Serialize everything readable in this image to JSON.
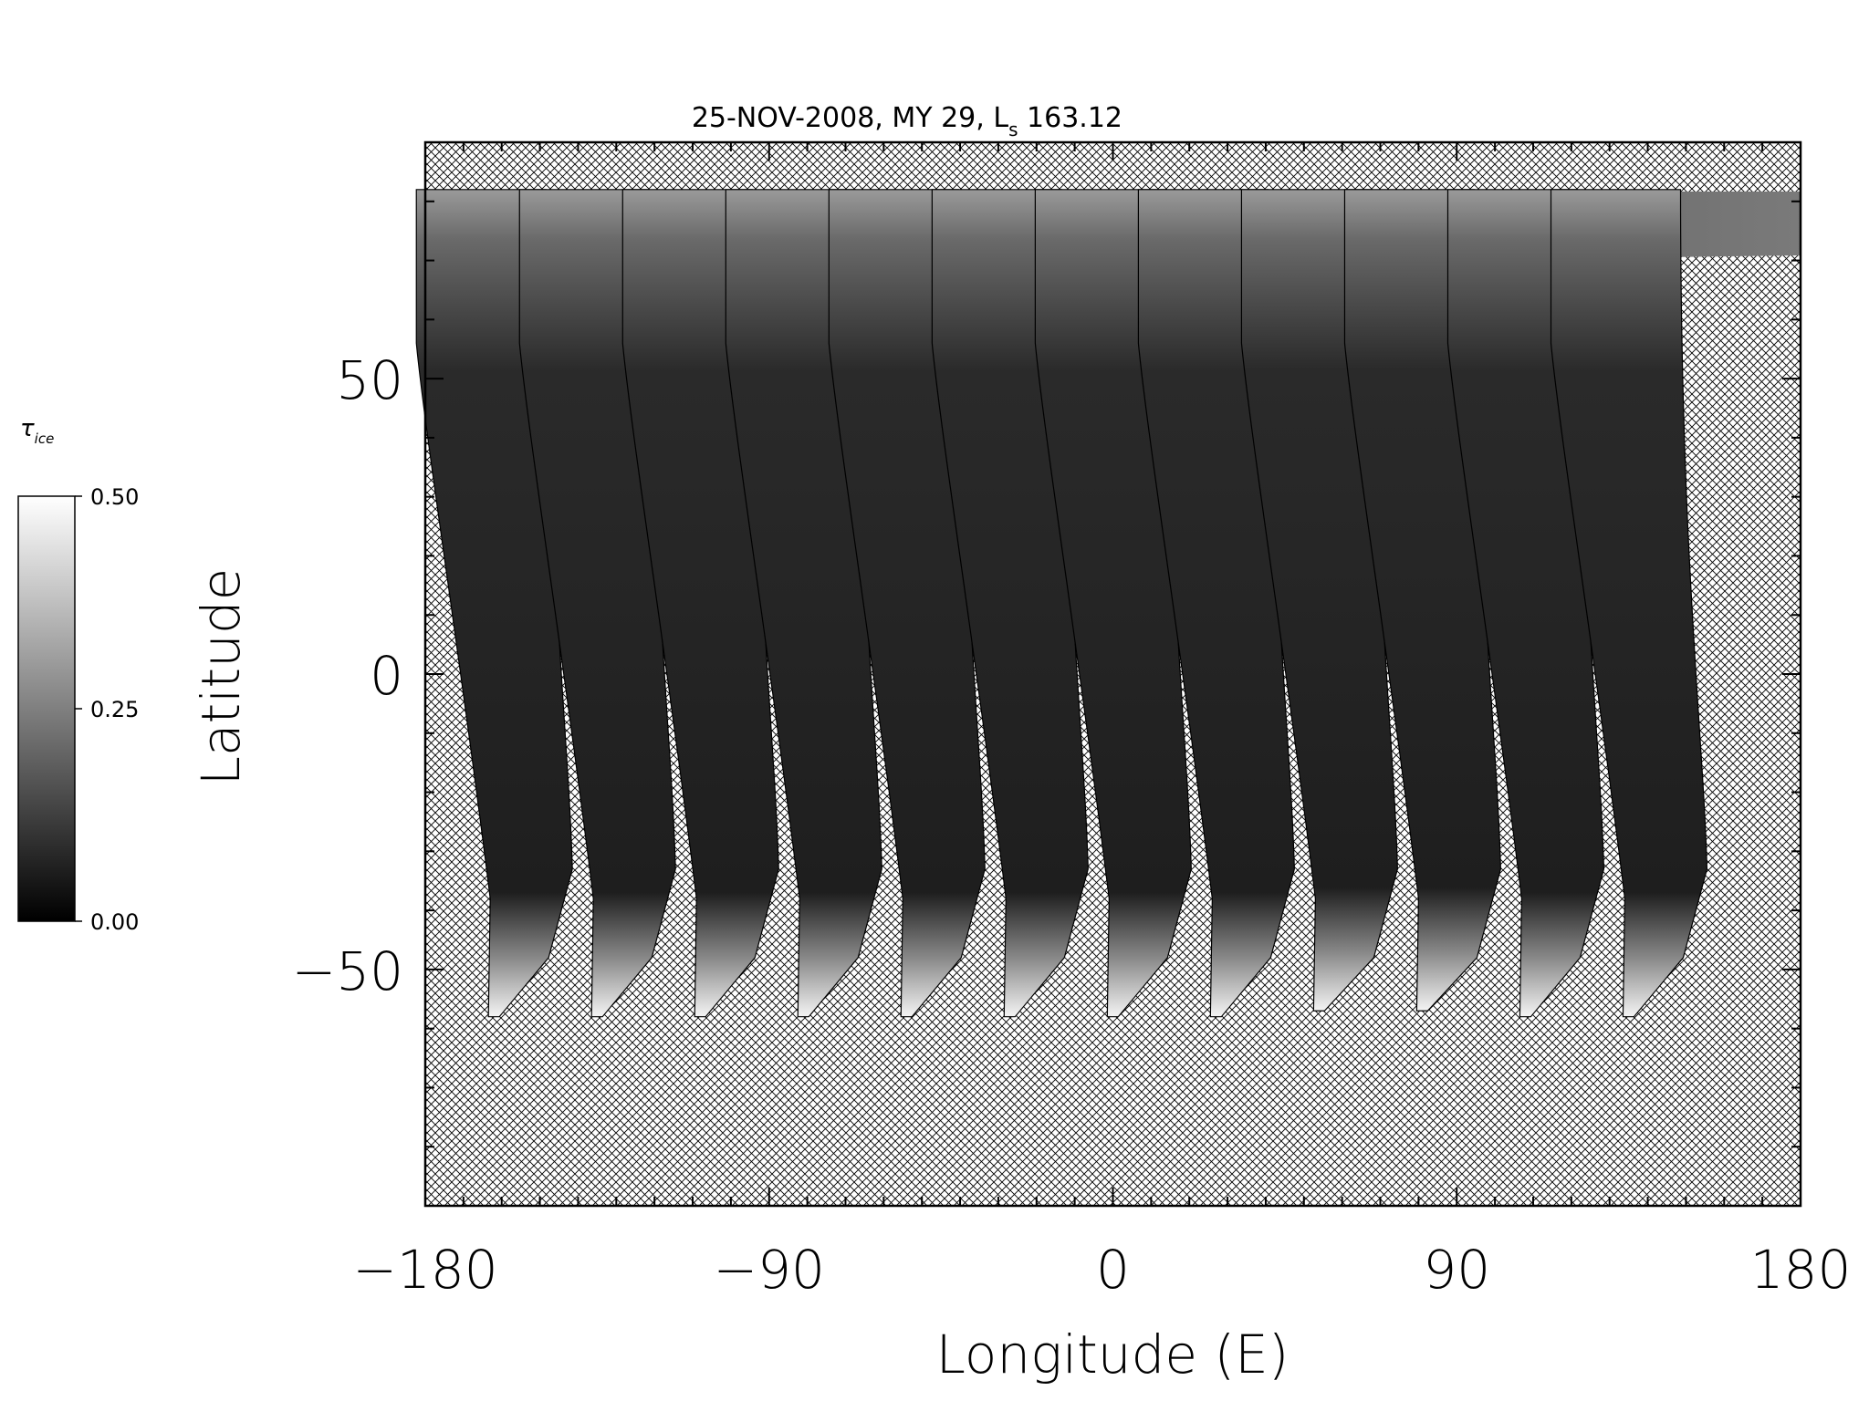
{
  "chart_data": {
    "type": "heatmap",
    "title": "25-NOV-2008, MY 29,  L",
    "title_sub": "s",
    "title_tail": " 163.12",
    "xlabel": "Longitude (E)",
    "ylabel": "Latitude",
    "xlim": [
      -180,
      180
    ],
    "ylim": [
      -90,
      90
    ],
    "x_ticks": [
      -180,
      -90,
      0,
      90,
      180
    ],
    "x_tick_labels": [
      "−180",
      "−90",
      "0",
      "90",
      "180"
    ],
    "y_ticks": [
      -50,
      0,
      50
    ],
    "y_tick_labels": [
      "−50",
      "0",
      "50"
    ],
    "x_minor_step": 10,
    "y_minor_step": 10,
    "missing_data": "crosshatch",
    "colorbar": {
      "title": "τ",
      "title_sub": "ice",
      "min": 0.0,
      "max": 0.5,
      "ticks": [
        0.0,
        0.25,
        0.5
      ],
      "tick_labels": [
        "0.00",
        "0.25",
        "0.50"
      ],
      "colors": [
        "#000000",
        "#ffffff"
      ]
    },
    "swaths": [
      {
        "lon_top": -168,
        "lon_bottom": -163,
        "lat_bottom": -58
      },
      {
        "lon_top": -141,
        "lon_bottom": -136,
        "lat_bottom": -58
      },
      {
        "lon_top": -114,
        "lon_bottom": -109,
        "lat_bottom": -58
      },
      {
        "lon_top": -87,
        "lon_bottom": -82,
        "lat_bottom": -58
      },
      {
        "lon_top": -60,
        "lon_bottom": -55,
        "lat_bottom": -58
      },
      {
        "lon_top": -33,
        "lon_bottom": -28,
        "lat_bottom": -58
      },
      {
        "lon_top": -6,
        "lon_bottom": -1,
        "lat_bottom": -58
      },
      {
        "lon_top": 21,
        "lon_bottom": 26,
        "lat_bottom": -58
      },
      {
        "lon_top": 48,
        "lon_bottom": 53,
        "lat_bottom": -57
      },
      {
        "lon_top": 75,
        "lon_bottom": 80,
        "lat_bottom": -57
      },
      {
        "lon_top": 102,
        "lon_bottom": 107,
        "lat_bottom": -58
      },
      {
        "lon_top": 129,
        "lon_bottom": 134,
        "lat_bottom": -58
      }
    ]
  }
}
